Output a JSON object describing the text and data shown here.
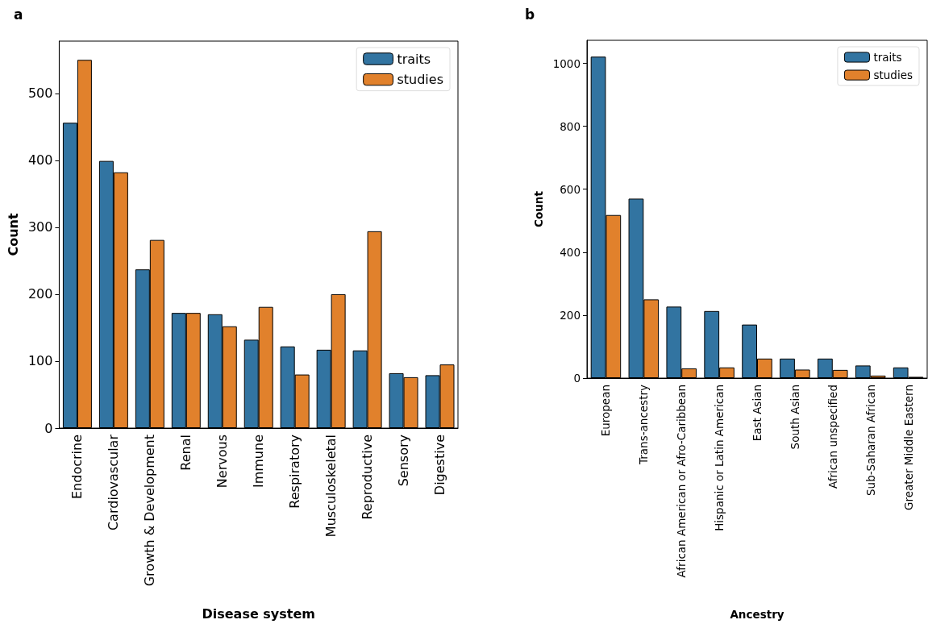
{
  "chart_data": [
    {
      "type": "bar",
      "title": "a",
      "xlabel": "Disease system",
      "ylabel": "Count",
      "categories": [
        "Endocrine",
        "Cardiovascular",
        "Growth & Development",
        "Renal",
        "Nervous",
        "Immune",
        "Respiratory",
        "Musculoskeletal",
        "Reproductive",
        "Sensory",
        "Digestive"
      ],
      "series": [
        {
          "name": "traits",
          "color": "#3274a1",
          "values": [
            456,
            399,
            237,
            172,
            170,
            132,
            122,
            117,
            116,
            82,
            79
          ]
        },
        {
          "name": "studies",
          "color": "#e1812c",
          "values": [
            550,
            382,
            281,
            172,
            152,
            181,
            80,
            200,
            294,
            76,
            95
          ]
        }
      ],
      "ylim": [
        0,
        578
      ],
      "yticks": [
        0,
        100,
        200,
        300,
        400,
        500
      ],
      "grid": false,
      "legend": "top right"
    },
    {
      "type": "bar",
      "title": "b",
      "xlabel": "Ancestry",
      "ylabel": "Count",
      "categories": [
        "European",
        "Trans-ancestry",
        "African American or Afro-Caribbean",
        "Hispanic or Latin American",
        "East Asian",
        "South Asian",
        "African unspecified",
        "Sub-Saharan African",
        "Greater Middle Eastern"
      ],
      "series": [
        {
          "name": "traits",
          "color": "#3274a1",
          "values": [
            1021,
            570,
            227,
            213,
            170,
            62,
            62,
            40,
            34
          ]
        },
        {
          "name": "studies",
          "color": "#e1812c",
          "values": [
            518,
            250,
            31,
            34,
            62,
            27,
            26,
            8,
            4
          ]
        }
      ],
      "ylim": [
        0,
        1073
      ],
      "yticks": [
        0,
        200,
        400,
        600,
        800,
        1000
      ],
      "grid": false,
      "legend": "top right"
    }
  ]
}
